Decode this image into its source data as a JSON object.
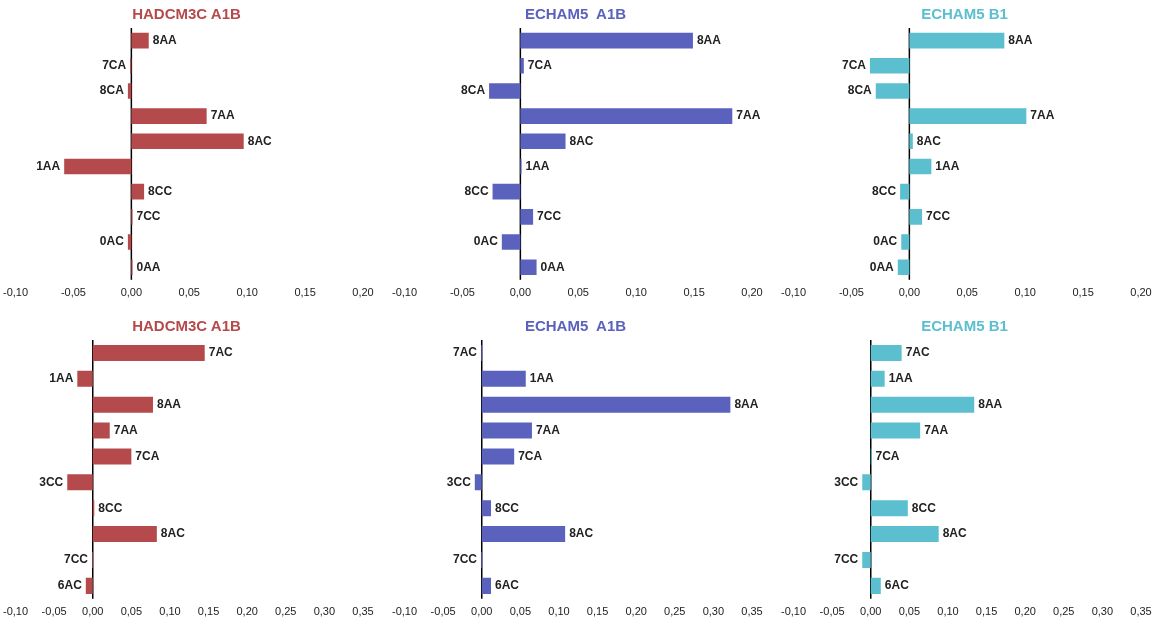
{
  "chart_data": [
    {
      "type": "bar",
      "orientation": "horizontal",
      "title": "HADCM3C A1B",
      "categories": [
        "8AA",
        "7CA",
        "8CA",
        "7AA",
        "8AC",
        "1AA",
        "8CC",
        "7CC",
        "0AC",
        "0AA"
      ],
      "values": [
        0.015,
        -0.001,
        -0.003,
        0.065,
        0.097,
        -0.058,
        0.011,
        0.001,
        -0.003,
        0.001
      ],
      "color": "#b54a4c",
      "ref_lines": [
        {
          "axis": "x",
          "value": 0,
          "color": "#000000"
        }
      ],
      "xlim": [
        -0.1,
        0.2
      ],
      "xticks": [
        {
          "value": -0.1,
          "label": "-0,10"
        },
        {
          "value": -0.05,
          "label": "-0,05"
        },
        {
          "value": 0,
          "label": "0,00"
        },
        {
          "value": 0.05,
          "label": "0,05"
        },
        {
          "value": 0.1,
          "label": "0,10"
        },
        {
          "value": 0.15,
          "label": "0,15"
        },
        {
          "value": 0.2,
          "label": "0,20"
        }
      ],
      "grid": false,
      "tick_labels": "x"
    },
    {
      "type": "bar",
      "orientation": "horizontal",
      "title": "ECHAM5  A1B",
      "categories": [
        "8AA",
        "7CA",
        "8CA",
        "7AA",
        "8AC",
        "1AA",
        "8CC",
        "7CC",
        "0AC",
        "0AA"
      ],
      "values": [
        0.149,
        0.003,
        -0.027,
        0.183,
        0.039,
        0.001,
        -0.024,
        0.011,
        -0.016,
        0.014
      ],
      "color": "#5a62be",
      "ref_lines": [
        {
          "axis": "x",
          "value": 0,
          "color": "#000000"
        }
      ],
      "xlim": [
        -0.1,
        0.2
      ],
      "xticks": [
        {
          "value": -0.1,
          "label": "-0,10"
        },
        {
          "value": -0.05,
          "label": "-0,05"
        },
        {
          "value": 0,
          "label": "0,00"
        },
        {
          "value": 0.05,
          "label": "0,05"
        },
        {
          "value": 0.1,
          "label": "0,10"
        },
        {
          "value": 0.15,
          "label": "0,15"
        },
        {
          "value": 0.2,
          "label": "0,20"
        }
      ],
      "grid": false,
      "tick_labels": "x"
    },
    {
      "type": "bar",
      "orientation": "horizontal",
      "title": "ECHAM5 B1",
      "categories": [
        "8AA",
        "7CA",
        "8CA",
        "7AA",
        "8AC",
        "1AA",
        "8CC",
        "7CC",
        "0AC",
        "0AA"
      ],
      "values": [
        0.082,
        -0.034,
        -0.029,
        0.101,
        0.003,
        0.019,
        -0.008,
        0.011,
        -0.007,
        -0.01
      ],
      "color": "#5bbfd0",
      "ref_lines": [
        {
          "axis": "x",
          "value": 0,
          "color": "#000000"
        }
      ],
      "xlim": [
        -0.1,
        0.2
      ],
      "xticks": [
        {
          "value": -0.1,
          "label": "-0,10"
        },
        {
          "value": -0.05,
          "label": "-0,05"
        },
        {
          "value": 0,
          "label": "0,00"
        },
        {
          "value": 0.05,
          "label": "0,05"
        },
        {
          "value": 0.1,
          "label": "0,10"
        },
        {
          "value": 0.15,
          "label": "0,15"
        },
        {
          "value": 0.2,
          "label": "0,20"
        }
      ],
      "grid": false,
      "tick_labels": "x"
    },
    {
      "type": "bar",
      "orientation": "horizontal",
      "title": "HADCM3C A1B",
      "categories": [
        "7AC",
        "1AA",
        "8AA",
        "7AA",
        "7CA",
        "3CC",
        "8CC",
        "8AC",
        "7CC",
        "6AC"
      ],
      "values": [
        0.145,
        -0.02,
        0.078,
        0.022,
        0.05,
        -0.033,
        0.002,
        0.083,
        -0.001,
        -0.009
      ],
      "color": "#b54a4c",
      "ref_lines": [
        {
          "axis": "x",
          "value": 0,
          "color": "#000000"
        }
      ],
      "xlim": [
        -0.1,
        0.35
      ],
      "xticks": [
        {
          "value": -0.1,
          "label": "-0,10"
        },
        {
          "value": -0.05,
          "label": "-0,05"
        },
        {
          "value": 0,
          "label": "0,00"
        },
        {
          "value": 0.05,
          "label": "0,05"
        },
        {
          "value": 0.1,
          "label": "0,10"
        },
        {
          "value": 0.15,
          "label": "0,15"
        },
        {
          "value": 0.2,
          "label": "0,20"
        },
        {
          "value": 0.25,
          "label": "0,25"
        },
        {
          "value": 0.3,
          "label": "0,30"
        },
        {
          "value": 0.35,
          "label": "0,35"
        }
      ],
      "grid": false,
      "tick_labels": "x"
    },
    {
      "type": "bar",
      "orientation": "horizontal",
      "title": "ECHAM5  A1B",
      "categories": [
        "7AC",
        "1AA",
        "8AA",
        "7AA",
        "7CA",
        "3CC",
        "8CC",
        "8AC",
        "7CC",
        "6AC"
      ],
      "values": [
        -0.001,
        0.057,
        0.322,
        0.065,
        0.042,
        -0.009,
        0.012,
        0.108,
        -0.001,
        0.012
      ],
      "color": "#5a62be",
      "ref_lines": [
        {
          "axis": "x",
          "value": 0,
          "color": "#000000"
        }
      ],
      "xlim": [
        -0.1,
        0.35
      ],
      "xticks": [
        {
          "value": -0.1,
          "label": "-0,10"
        },
        {
          "value": -0.05,
          "label": "-0,05"
        },
        {
          "value": 0,
          "label": "0,00"
        },
        {
          "value": 0.05,
          "label": "0,05"
        },
        {
          "value": 0.1,
          "label": "0,10"
        },
        {
          "value": 0.15,
          "label": "0,15"
        },
        {
          "value": 0.2,
          "label": "0,20"
        },
        {
          "value": 0.25,
          "label": "0,25"
        },
        {
          "value": 0.3,
          "label": "0,30"
        },
        {
          "value": 0.35,
          "label": "0,35"
        }
      ],
      "grid": false,
      "tick_labels": "x"
    },
    {
      "type": "bar",
      "orientation": "horizontal",
      "title": "ECHAM5 B1",
      "categories": [
        "7AC",
        "1AA",
        "8AA",
        "7AA",
        "7CA",
        "3CC",
        "8CC",
        "8AC",
        "7CC",
        "6AC"
      ],
      "values": [
        0.04,
        0.018,
        0.134,
        0.064,
        0.001,
        -0.011,
        0.048,
        0.088,
        -0.011,
        0.013
      ],
      "color": "#5bbfd0",
      "ref_lines": [
        {
          "axis": "x",
          "value": 0,
          "color": "#000000"
        }
      ],
      "xlim": [
        -0.1,
        0.35
      ],
      "xticks": [
        {
          "value": -0.1,
          "label": "-0,10"
        },
        {
          "value": -0.05,
          "label": "-0,05"
        },
        {
          "value": 0,
          "label": "0,00"
        },
        {
          "value": 0.05,
          "label": "0,05"
        },
        {
          "value": 0.1,
          "label": "0,10"
        },
        {
          "value": 0.15,
          "label": "0,15"
        },
        {
          "value": 0.2,
          "label": "0,20"
        },
        {
          "value": 0.25,
          "label": "0,25"
        },
        {
          "value": 0.3,
          "label": "0,30"
        },
        {
          "value": 0.35,
          "label": "0,35"
        }
      ],
      "grid": false,
      "tick_labels": "x"
    }
  ]
}
